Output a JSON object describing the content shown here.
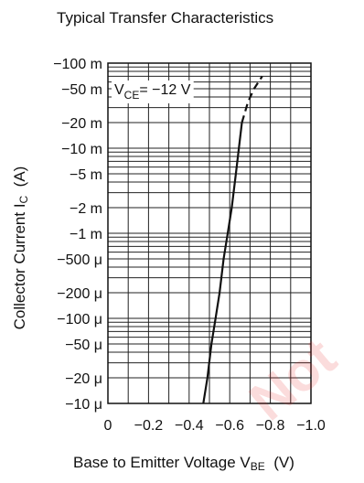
{
  "chart_data": {
    "type": "line",
    "title": "Typical Transfer Characteristics",
    "xlabel": {
      "text": "Base to Emitter Voltage  V",
      "sub": "BE",
      "unit": "(V)"
    },
    "ylabel": {
      "text": "Collector Current  I",
      "sub": "C",
      "unit": "(A)"
    },
    "annotation": {
      "text": "V",
      "sub": "CE",
      "value": "= −12 V"
    },
    "x_scale": "linear",
    "y_scale": "log",
    "xlim": [
      0,
      -1.0
    ],
    "ylim": [
      -1e-05,
      -0.1
    ],
    "x_ticks": [
      {
        "value": 0,
        "label": "0"
      },
      {
        "value": -0.2,
        "label": "−0.2"
      },
      {
        "value": -0.4,
        "label": "−0.4"
      },
      {
        "value": -0.6,
        "label": "−0.6"
      },
      {
        "value": -0.8,
        "label": "−0.8"
      },
      {
        "value": -1.0,
        "label": "−1.0"
      }
    ],
    "y_ticks": [
      {
        "value": -0.1,
        "label": "−100 m"
      },
      {
        "value": -0.05,
        "label": "−50 m"
      },
      {
        "value": -0.02,
        "label": "−20 m"
      },
      {
        "value": -0.01,
        "label": "−10 m"
      },
      {
        "value": -0.005,
        "label": "−5 m"
      },
      {
        "value": -0.002,
        "label": "−2 m"
      },
      {
        "value": -0.001,
        "label": "−1 m"
      },
      {
        "value": -0.0005,
        "label": "−500 μ"
      },
      {
        "value": -0.0002,
        "label": "−200 μ"
      },
      {
        "value": -0.0001,
        "label": "−100 μ"
      },
      {
        "value": -5e-05,
        "label": "−50 μ"
      },
      {
        "value": -2e-05,
        "label": "−20 μ"
      },
      {
        "value": -1e-05,
        "label": "−10 μ"
      }
    ],
    "grid": true,
    "series": [
      {
        "style": "solid",
        "points": [
          {
            "x": -0.47,
            "y": -1e-05
          },
          {
            "x": -0.49,
            "y": -2e-05
          },
          {
            "x": -0.51,
            "y": -5e-05
          },
          {
            "x": -0.53,
            "y": -0.0001
          },
          {
            "x": -0.55,
            "y": -0.0002
          },
          {
            "x": -0.57,
            "y": -0.0005
          },
          {
            "x": -0.59,
            "y": -0.001
          },
          {
            "x": -0.61,
            "y": -0.002
          },
          {
            "x": -0.63,
            "y": -0.005
          },
          {
            "x": -0.645,
            "y": -0.01
          },
          {
            "x": -0.66,
            "y": -0.02
          }
        ]
      },
      {
        "style": "dashed",
        "points": [
          {
            "x": -0.66,
            "y": -0.02
          },
          {
            "x": -0.69,
            "y": -0.035
          },
          {
            "x": -0.72,
            "y": -0.05
          },
          {
            "x": -0.76,
            "y": -0.07
          }
        ]
      }
    ]
  },
  "watermark": "Not"
}
